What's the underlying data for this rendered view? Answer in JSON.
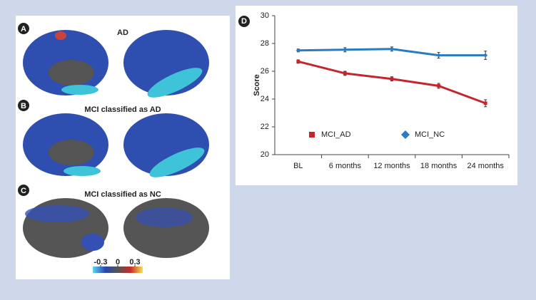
{
  "panels": [
    {
      "label": "A",
      "title": "AD"
    },
    {
      "label": "B",
      "title": "MCI classified as AD"
    },
    {
      "label": "C",
      "title": "MCI classified as NC"
    }
  ],
  "colorbar": {
    "ticks": [
      -0.3,
      0,
      0.3
    ]
  },
  "chart_data": {
    "type": "line",
    "label": "D",
    "ylabel": "Score",
    "categories": [
      "BL",
      "6 months",
      "12 months",
      "18 months",
      "24 months"
    ],
    "series": [
      {
        "name": "MCI_AD",
        "color": "#c4262e",
        "marker": "square",
        "values": [
          26.7,
          25.85,
          25.45,
          24.95,
          23.7
        ],
        "errors": [
          0.12,
          0.15,
          0.15,
          0.18,
          0.25
        ]
      },
      {
        "name": "MCI_NC",
        "color": "#2b7bc0",
        "marker": "diamond",
        "values": [
          27.5,
          27.55,
          27.6,
          27.15,
          27.15
        ],
        "errors": [
          0.1,
          0.15,
          0.15,
          0.2,
          0.3
        ]
      }
    ],
    "ylim": [
      20,
      30
    ],
    "yticks": [
      20,
      22,
      24,
      26,
      28,
      30
    ]
  }
}
